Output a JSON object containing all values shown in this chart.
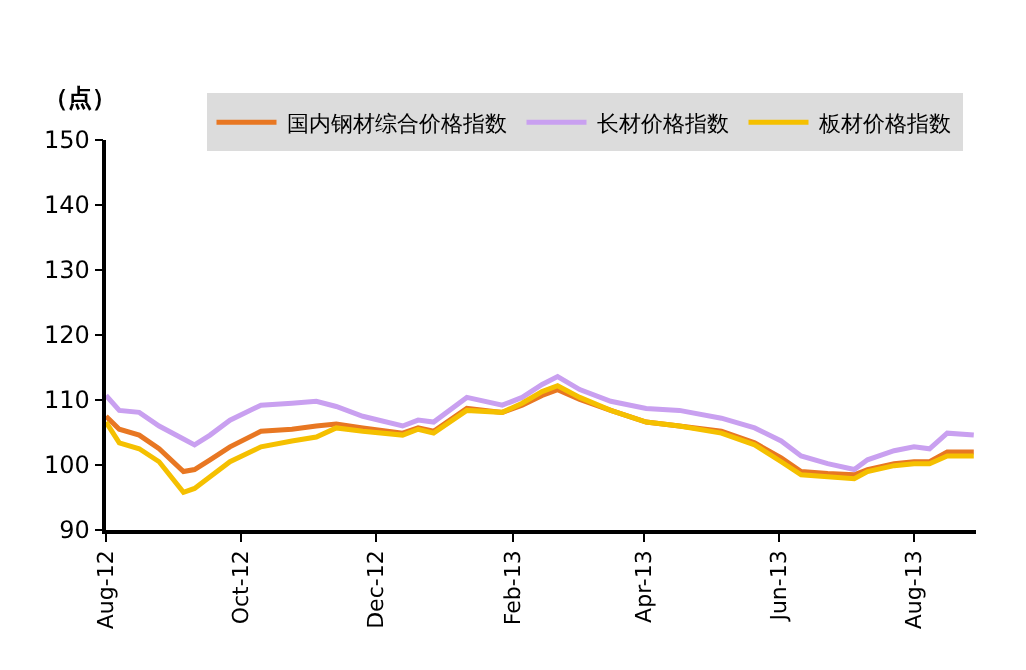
{
  "chart_data": {
    "type": "line",
    "ylabel": "（点）",
    "x": [
      "2012-08-01",
      "2012-08-07",
      "2012-08-16",
      "2012-08-25",
      "2012-09-05",
      "2012-09-10",
      "2012-09-17",
      "2012-09-26",
      "2012-10-10",
      "2012-10-24",
      "2012-11-04",
      "2012-11-13",
      "2012-11-25",
      "2012-12-13",
      "2012-12-20",
      "2012-12-27",
      "2013-01-11",
      "2013-01-27",
      "2013-02-05",
      "2013-02-14",
      "2013-02-21",
      "2013-03-03",
      "2013-03-17",
      "2013-04-02",
      "2013-04-17",
      "2013-05-06",
      "2013-05-21",
      "2013-06-02",
      "2013-06-11",
      "2013-06-23",
      "2013-07-05",
      "2013-07-11",
      "2013-07-23",
      "2013-08-01",
      "2013-08-08",
      "2013-08-16",
      "2013-08-28"
    ],
    "series": [
      {
        "name": "国内钢材综合价格指数",
        "color": "#e87722",
        "values": [
          107.5,
          105.5,
          104.6,
          102.5,
          99.0,
          99.3,
          100.8,
          102.8,
          105.2,
          105.5,
          106.0,
          106.3,
          105.7,
          104.9,
          105.7,
          105.2,
          108.7,
          108.1,
          109.2,
          110.7,
          111.6,
          110.1,
          108.4,
          106.6,
          106.0,
          105.2,
          103.4,
          101.1,
          99.0,
          98.7,
          98.5,
          99.3,
          100.2,
          100.5,
          100.5,
          102.0,
          102.0
        ]
      },
      {
        "name": "长材价格指数",
        "color": "#c9a0f0",
        "values": [
          110.7,
          108.4,
          108.1,
          106.0,
          104.0,
          103.1,
          104.6,
          106.9,
          109.2,
          109.5,
          109.8,
          109.0,
          107.5,
          106.0,
          106.9,
          106.6,
          110.4,
          109.2,
          110.4,
          112.4,
          113.6,
          111.6,
          109.8,
          108.7,
          108.4,
          107.2,
          105.7,
          103.7,
          101.4,
          100.2,
          99.3,
          100.8,
          102.2,
          102.8,
          102.5,
          104.9,
          104.6
        ]
      },
      {
        "name": "板材价格指数",
        "color": "#f5c000",
        "values": [
          106.6,
          103.4,
          102.5,
          100.5,
          95.8,
          96.4,
          98.2,
          100.5,
          102.8,
          103.7,
          104.3,
          105.7,
          105.2,
          104.6,
          105.5,
          104.9,
          108.4,
          108.1,
          109.5,
          111.3,
          112.2,
          110.4,
          108.4,
          106.6,
          106.0,
          104.9,
          103.1,
          100.5,
          98.5,
          98.2,
          97.9,
          99.0,
          99.9,
          100.2,
          100.2,
          101.4,
          101.4
        ]
      }
    ],
    "xlim": [
      "2012-08-01",
      "2013-08-29"
    ],
    "xticks": [
      {
        "value": "2012-08-01",
        "label": "Aug-12"
      },
      {
        "value": "2012-10-01",
        "label": "Oct-12"
      },
      {
        "value": "2012-12-01",
        "label": "Dec-12"
      },
      {
        "value": "2013-02-01",
        "label": "Feb-13"
      },
      {
        "value": "2013-04-01",
        "label": "Apr-13"
      },
      {
        "value": "2013-06-01",
        "label": "Jun-13"
      },
      {
        "value": "2013-08-01",
        "label": "Aug-13"
      }
    ],
    "ylim": [
      90,
      150
    ],
    "yticks": [
      90,
      100,
      110,
      120,
      130,
      140,
      150
    ],
    "legend": "top",
    "marker": "none",
    "line_style": "solid"
  }
}
